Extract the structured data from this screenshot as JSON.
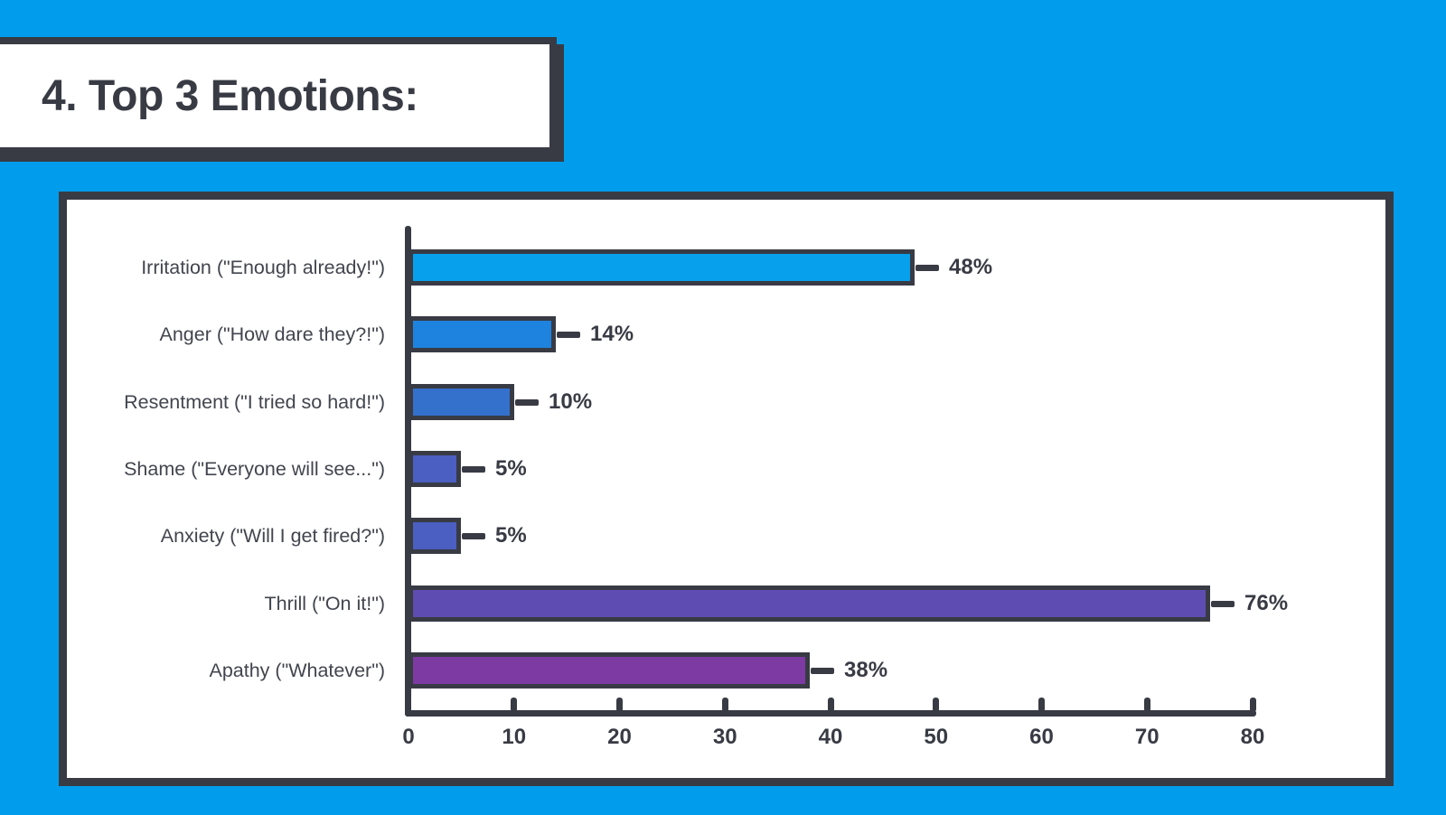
{
  "title": "4. Top 3 Emotions:",
  "colors": {
    "background": "#019DEC",
    "outline": "#383B44",
    "panel": "#FFFFFF",
    "label_text": "#42454E"
  },
  "chart_data": {
    "type": "bar",
    "orientation": "horizontal",
    "title": "",
    "xlabel": "",
    "ylabel": "",
    "xlim": [
      0,
      80
    ],
    "x_ticks": [
      "0",
      "10",
      "20",
      "30",
      "40",
      "50",
      "60",
      "70",
      "80"
    ],
    "grid": false,
    "legend": false,
    "categories": [
      "Irritation (\"Enough already!\")",
      "Anger (\"How dare they?!\")",
      "Resentment (\"I tried so hard!\")",
      "Shame (\"Everyone will see...\")",
      "Anxiety (\"Will I get fired?\")",
      "Thrill (\"On it!\")",
      "Apathy (\"Whatever\")"
    ],
    "values": [
      48,
      14,
      10,
      5,
      5,
      76,
      38
    ],
    "value_labels": [
      "48%",
      "14%",
      "10%",
      "5%",
      "5%",
      "76%",
      "38%"
    ],
    "bar_colors": [
      "#07A0ED",
      "#1E83DE",
      "#3471CD",
      "#4A5FC1",
      "#4A5FC1",
      "#5F4CB2",
      "#7D3AA2"
    ]
  }
}
